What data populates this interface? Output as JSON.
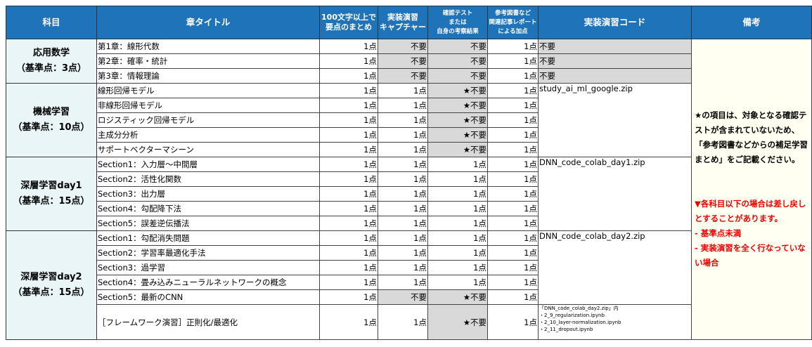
{
  "headers": [
    "科目",
    "章タイトル",
    "100文字以上で\n要点のまとめ",
    "実装演習\nキャプチャー",
    "確認テスト\nまたは\n自身の考察結果",
    "参考図書など\n関連記事レポート\nによる加点",
    "実装演習コード",
    "備考"
  ],
  "groups": [
    {
      "subject": "応用数学",
      "base": "（基準点：3点）",
      "code": null,
      "rows": [
        {
          "title": "第1章：線形代数",
          "c1": "1点",
          "c2": "不要",
          "c3": "不要",
          "c4": "1点",
          "code": "不要"
        },
        {
          "title": "第2章：確率・統計",
          "c1": "1点",
          "c2": "不要",
          "c3": "不要",
          "c4": "1点",
          "code": "不要"
        },
        {
          "title": "第3章：情報理論",
          "c1": "1点",
          "c2": "不要",
          "c3": "不要",
          "c4": "1点",
          "code": "不要"
        }
      ]
    },
    {
      "subject": "機械学習",
      "base": "（基準点：10点）",
      "code": "study_ai_ml_google.zip",
      "rows": [
        {
          "title": "線形回帰モデル",
          "c1": "1点",
          "c2": "1点",
          "c3": "★不要",
          "c4": "1点"
        },
        {
          "title": "非線形回帰モデル",
          "c1": "1点",
          "c2": "1点",
          "c3": "★不要",
          "c4": "1点"
        },
        {
          "title": "ロジスティック回帰モデル",
          "c1": "1点",
          "c2": "1点",
          "c3": "★不要",
          "c4": "1点"
        },
        {
          "title": "主成分分析",
          "c1": "1点",
          "c2": "1点",
          "c3": "★不要",
          "c4": "1点"
        },
        {
          "title": "サポートベクターマシーン",
          "c1": "1点",
          "c2": "1点",
          "c3": "★不要",
          "c4": "1点"
        }
      ]
    },
    {
      "subject": "深層学習day1",
      "base": "（基準点：15点）",
      "code": "DNN_code_colab_day1.zip",
      "rows": [
        {
          "title": "Section1：入力層～中間層",
          "c1": "1点",
          "c2": "1点",
          "c3": "1点",
          "c4": "1点"
        },
        {
          "title": "Section2：活性化関数",
          "c1": "1点",
          "c2": "1点",
          "c3": "1点",
          "c4": "1点"
        },
        {
          "title": "Section3：出力層",
          "c1": "1点",
          "c2": "1点",
          "c3": "1点",
          "c4": "1点"
        },
        {
          "title": "Section4：勾配降下法",
          "c1": "1点",
          "c2": "1点",
          "c3": "1点",
          "c4": "1点"
        },
        {
          "title": "Section5：誤差逆伝播法",
          "c1": "1点",
          "c2": "1点",
          "c3": "1点",
          "c4": "1点"
        }
      ]
    },
    {
      "subject": "深層学習day2",
      "base": "（基準点：15点）",
      "code": "DNN_code_colab_day2.zip",
      "rows": [
        {
          "title": "Section1：勾配消失問題",
          "c1": "1点",
          "c2": "1点",
          "c3": "1点",
          "c4": "1点"
        },
        {
          "title": "Section2：学習率最適化手法",
          "c1": "1点",
          "c2": "1点",
          "c3": "1点",
          "c4": "1点"
        },
        {
          "title": "Section3：過学習",
          "c1": "1点",
          "c2": "1点",
          "c3": "1点",
          "c4": "1点"
        },
        {
          "title": "Section4：畳み込みニューラルネットワークの概念",
          "c1": "1点",
          "c2": "1点",
          "c3": "1点",
          "c4": "1点"
        },
        {
          "title": "Section5：最新のCNN",
          "c1": "1点",
          "c2": "不要",
          "c3": "★不要",
          "c4": "1点"
        },
        {
          "title": "［フレームワーク演習］正則化/最適化",
          "c1": "1点",
          "c2": "1点",
          "c3": "★不要",
          "c4": "1点",
          "code": "「DNN_code_colab_day2.zip」内\n・2_9_regularization.ipynb\n・2_10_layer-normalization.ipynb\n・2_11_dropout.ipynb"
        }
      ]
    }
  ],
  "note": {
    "star": "★の項目は、対象となる確認テストが含まれていないため、「参考図書などからの補足学習まとめ」をご記載ください。",
    "warn": "▼各科目以下の場合は差し戻しとすることがあります。",
    "warn_items": [
      "- 基準点未満",
      "- 実装演習を全く行なっていない場合"
    ]
  },
  "colors": {
    "header": "#1f73b9",
    "grey": "#d9d9d9",
    "subject_bg": "#eaf5f8",
    "note_bg": "#fffff2",
    "warn": "#ee0000"
  }
}
